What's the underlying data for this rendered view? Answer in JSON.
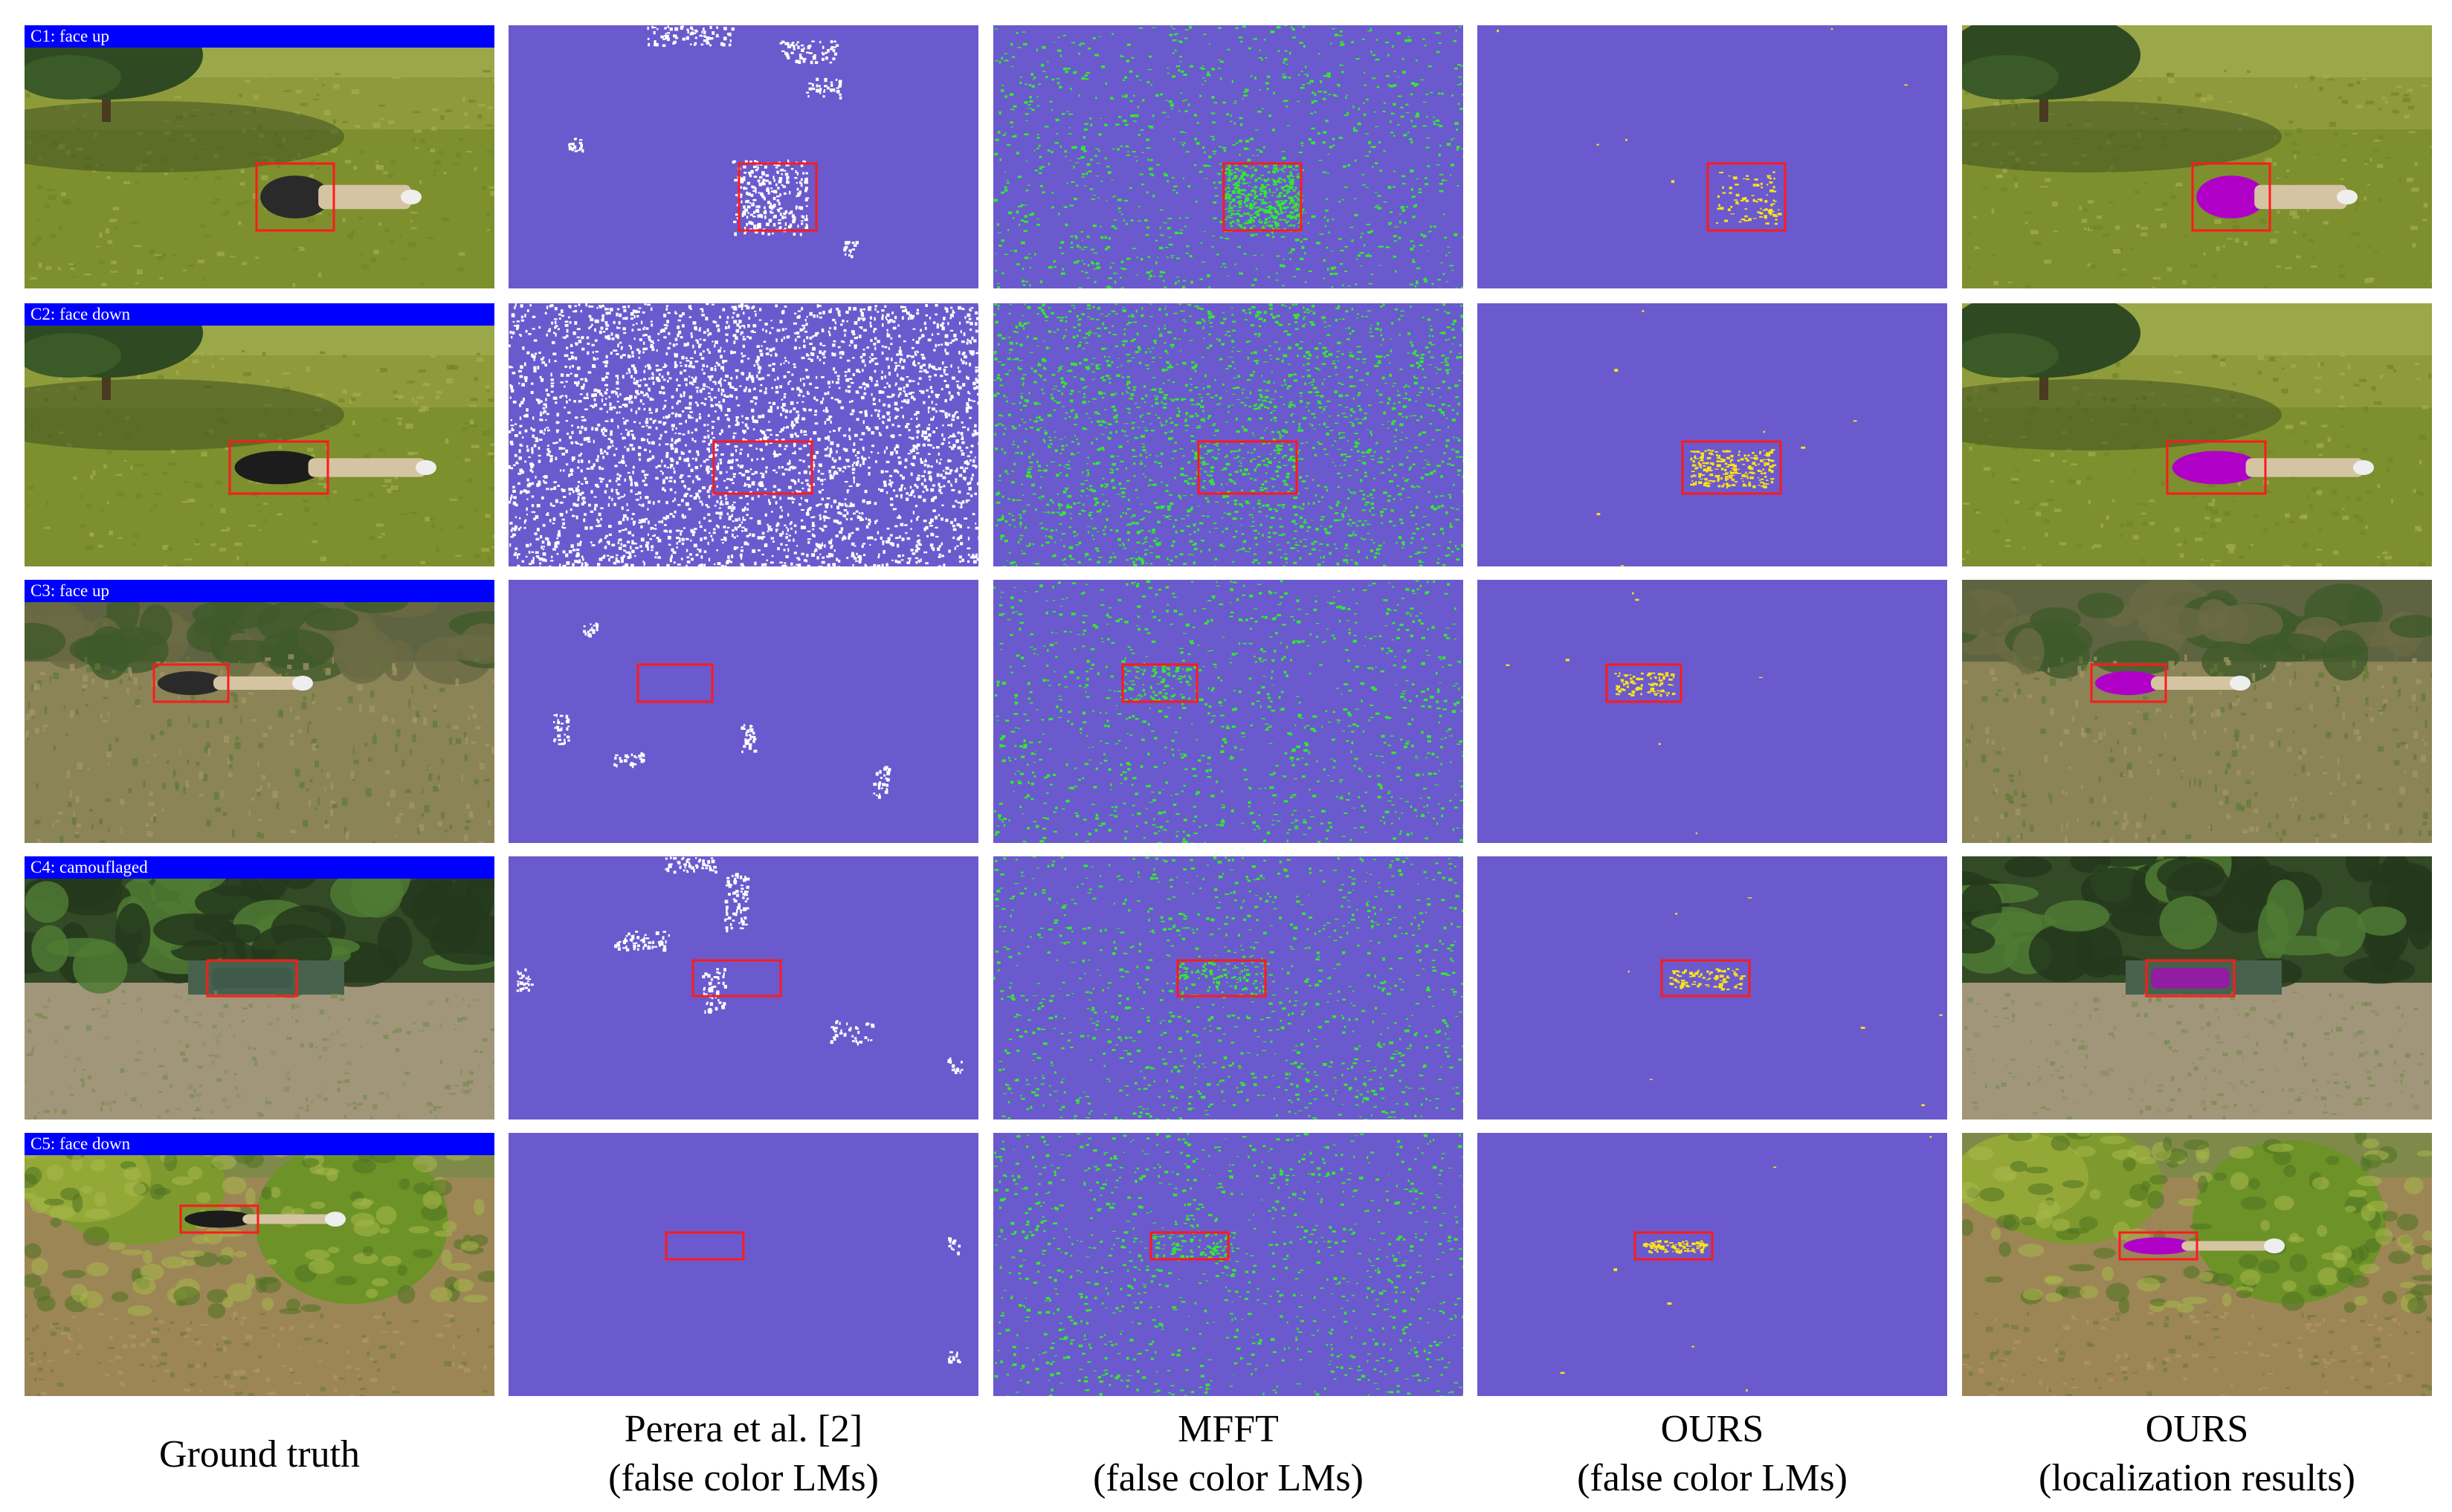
{
  "figure": {
    "columns": [
      {
        "key": "gt",
        "caption": [
          "Ground truth"
        ]
      },
      {
        "key": "perera",
        "caption": [
          "Perera et al. [2]",
          "(false color LMs)"
        ]
      },
      {
        "key": "mfft",
        "caption": [
          "MFFT",
          "(false color LMs)"
        ]
      },
      {
        "key": "ours_lm",
        "caption": [
          "OURS",
          "(false color LMs)"
        ]
      },
      {
        "key": "ours_loc",
        "caption": [
          "OURS",
          "(localization results)"
        ]
      }
    ],
    "rows": [
      {
        "label": "C1: face up",
        "scene": "lawn",
        "pose": "up"
      },
      {
        "label": "C2: face down",
        "scene": "lawn",
        "pose": "down"
      },
      {
        "label": "C3: face up",
        "scene": "brush",
        "pose": "up"
      },
      {
        "label": "C4: camouflaged",
        "scene": "garden",
        "pose": "camo"
      },
      {
        "label": "C5: face down",
        "scene": "bushes",
        "pose": "down"
      }
    ],
    "colors": {
      "map_background": "#6a5acd",
      "mfft_points": "#35e635",
      "ours_points": "#ffe21a",
      "perera_points": "#ffffff",
      "box": "#ff1a1a",
      "highlight": "#b000c8",
      "label_bar": "#0000ff"
    }
  }
}
